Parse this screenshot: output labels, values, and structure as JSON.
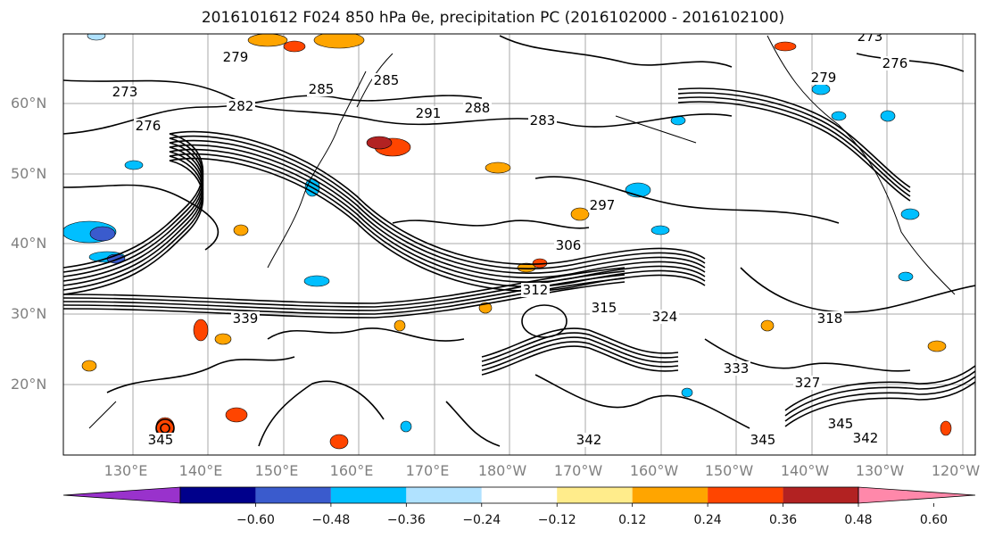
{
  "title": "2016101612 F024 850 hPa θe, precipitation PC (2016102000 - 2016102100)",
  "map": {
    "lat_labels": [
      "60°N",
      "50°N",
      "40°N",
      "30°N",
      "20°N"
    ],
    "lon_labels": [
      "130°E",
      "140°E",
      "150°E",
      "160°E",
      "170°E",
      "180°W",
      "170°W",
      "160°W",
      "150°W",
      "140°W",
      "130°W",
      "120°W"
    ],
    "contour_labels": [
      "273",
      "276",
      "279",
      "282",
      "285",
      "285",
      "291",
      "288",
      "283",
      "306",
      "315",
      "312",
      "339",
      "345",
      "342",
      "345",
      "342",
      "327",
      "333",
      "345",
      "279",
      "276",
      "273",
      "297",
      "324",
      "318"
    ]
  },
  "colorbar": {
    "colors": [
      "#9932cc",
      "#00008b",
      "#3a5bcd",
      "#00bfff",
      "#b0e2ff",
      "#ffffff",
      "#ffec8b",
      "#ffa500",
      "#ff4500",
      "#b22222",
      "#ff88aa"
    ],
    "tick_labels": [
      "−0.60",
      "−0.48",
      "−0.36",
      "−0.24",
      "−0.12",
      "0.12",
      "0.24",
      "0.36",
      "0.48",
      "0.60"
    ]
  }
}
